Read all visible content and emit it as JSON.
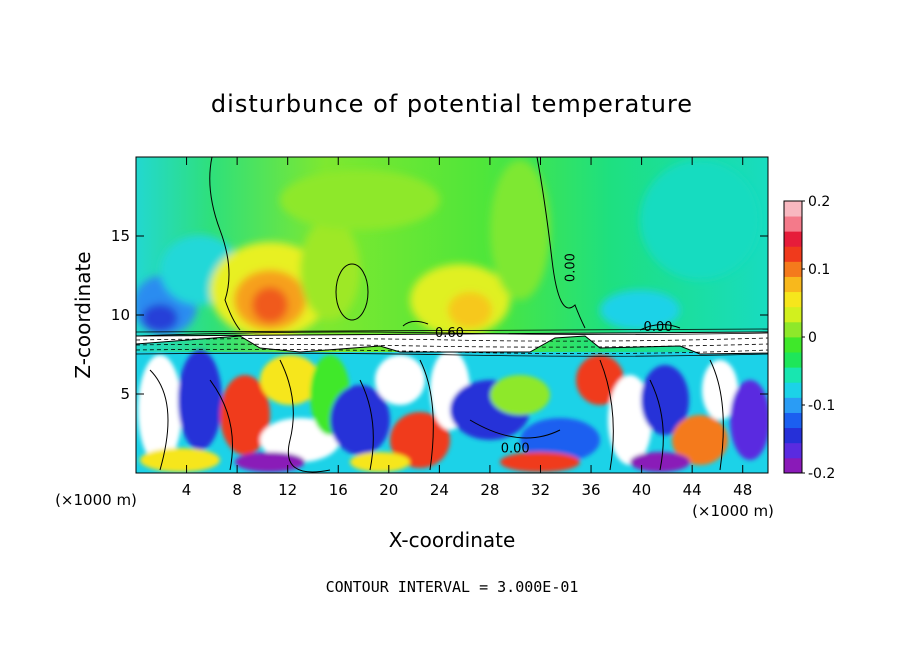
{
  "chart_data": {
    "type": "heatmap",
    "title": "disturbunce of potential temperature",
    "xlabel": "X-coordinate",
    "ylabel": "Z-coordinate",
    "x_unit_label_left": "(×1000 m)",
    "x_unit_label_right": "(×1000 m)",
    "xlim": [
      0,
      50
    ],
    "ylim": [
      0,
      20
    ],
    "x_ticks": [
      4,
      8,
      12,
      16,
      20,
      24,
      28,
      32,
      36,
      40,
      44,
      48
    ],
    "x_tick_labels": [
      "4",
      "8",
      "12",
      "16",
      "20",
      "24",
      "28",
      "32",
      "36",
      "40",
      "44",
      "48"
    ],
    "y_ticks": [
      5,
      10,
      15
    ],
    "y_tick_labels": [
      "5",
      "10",
      "15"
    ],
    "colorbar": {
      "range": [
        -0.2,
        0.2
      ],
      "ticks": [
        -0.2,
        -0.1,
        0,
        0.1,
        0.2
      ],
      "tick_labels": [
        "-0.2",
        "-0.1",
        "0",
        "0.1",
        "0.2"
      ],
      "colors": [
        "#8a1ab8",
        "#5a2be0",
        "#2630d8",
        "#1b5ff0",
        "#2a9cf5",
        "#1cd2e8",
        "#18e6b0",
        "#1ee65a",
        "#3fe82a",
        "#8ee82a",
        "#d2f01e",
        "#f6e61c",
        "#f8b81c",
        "#f47a1c",
        "#f03a1c",
        "#e61c3a",
        "#f47a8a",
        "#f8b8c0"
      ]
    },
    "contour_labels": [
      {
        "text": "0.60",
        "x": 24.8,
        "z": 8.6
      },
      {
        "text": "0.00",
        "x": 34.7,
        "z": 13.0
      },
      {
        "text": "0.00",
        "x": 41.3,
        "z": 9.0
      },
      {
        "text": "0.00",
        "x": 30.0,
        "z": 1.3
      }
    ],
    "footer": "CONTOUR INTERVAL = 3.000E-01"
  }
}
